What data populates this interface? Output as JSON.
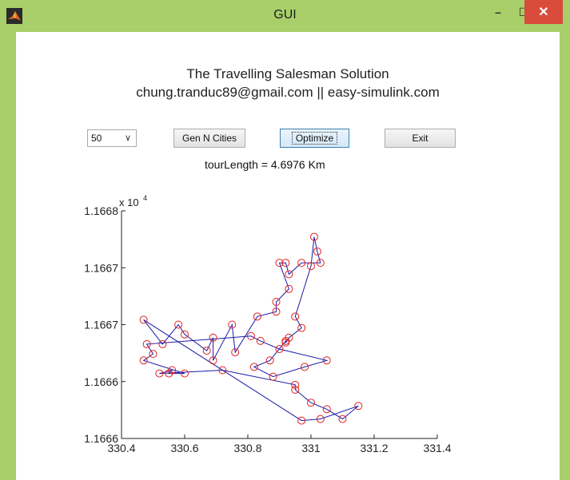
{
  "window": {
    "title": "GUI",
    "minimize_label": "–",
    "maximize_label": "☐",
    "close_label": "✕",
    "frame_color": "#a8cf6a",
    "close_color": "#d94b3b"
  },
  "header": {
    "title": "The Travelling Salesman Solution",
    "subtitle": "chung.tranduc89@gmail.com || easy-simulink.com"
  },
  "controls": {
    "n_cities_value": "50",
    "gen_label": "Gen N Cities",
    "optimize_label": "Optimize",
    "exit_label": "Exit"
  },
  "tour_length_text": "tourLength = 4.6976 Km",
  "chart_data": {
    "type": "line",
    "x_tick_labels": [
      "330.4",
      "330.6",
      "330.8",
      "331",
      "331.2",
      "331.4"
    ],
    "y_tick_labels": [
      "1.1666",
      "1.1666",
      "1.1667",
      "1.1667",
      "1.1668"
    ],
    "y_multiplier": "x 10",
    "y_multiplier_exp": "4",
    "xlim": [
      330.4,
      331.4
    ],
    "line_color": "#1a1aa8",
    "marker_color": "#e02020",
    "tour": [
      [
        330.47,
        73
      ],
      [
        330.53,
        58
      ],
      [
        330.58,
        70
      ],
      [
        330.6,
        64
      ],
      [
        330.67,
        54
      ],
      [
        330.69,
        62
      ],
      [
        330.69,
        48
      ],
      [
        330.75,
        70
      ],
      [
        330.76,
        53
      ],
      [
        330.83,
        75
      ],
      [
        330.89,
        78
      ],
      [
        330.89,
        84
      ],
      [
        330.93,
        92
      ],
      [
        330.9,
        108
      ],
      [
        330.92,
        108
      ],
      [
        330.93,
        101
      ],
      [
        330.97,
        108
      ],
      [
        331.03,
        108
      ],
      [
        331.02,
        115
      ],
      [
        331.01,
        124
      ],
      [
        331.0,
        106
      ],
      [
        330.95,
        75
      ],
      [
        330.97,
        68
      ],
      [
        330.93,
        62
      ],
      [
        330.92,
        59
      ],
      [
        330.92,
        60
      ],
      [
        330.87,
        48
      ],
      [
        330.82,
        44
      ],
      [
        330.88,
        38
      ],
      [
        330.98,
        44
      ],
      [
        331.05,
        48
      ],
      [
        330.9,
        55
      ],
      [
        330.84,
        60
      ],
      [
        330.81,
        63
      ],
      [
        330.48,
        58
      ],
      [
        330.5,
        52
      ],
      [
        330.47,
        48
      ],
      [
        330.6,
        40
      ],
      [
        330.55,
        40
      ],
      [
        330.56,
        42
      ],
      [
        330.52,
        40
      ],
      [
        330.72,
        42
      ],
      [
        330.95,
        33
      ],
      [
        330.95,
        30
      ],
      [
        331.0,
        22
      ],
      [
        331.05,
        18
      ],
      [
        331.1,
        12
      ],
      [
        331.15,
        20
      ],
      [
        331.03,
        12
      ],
      [
        330.97,
        11
      ]
    ]
  }
}
